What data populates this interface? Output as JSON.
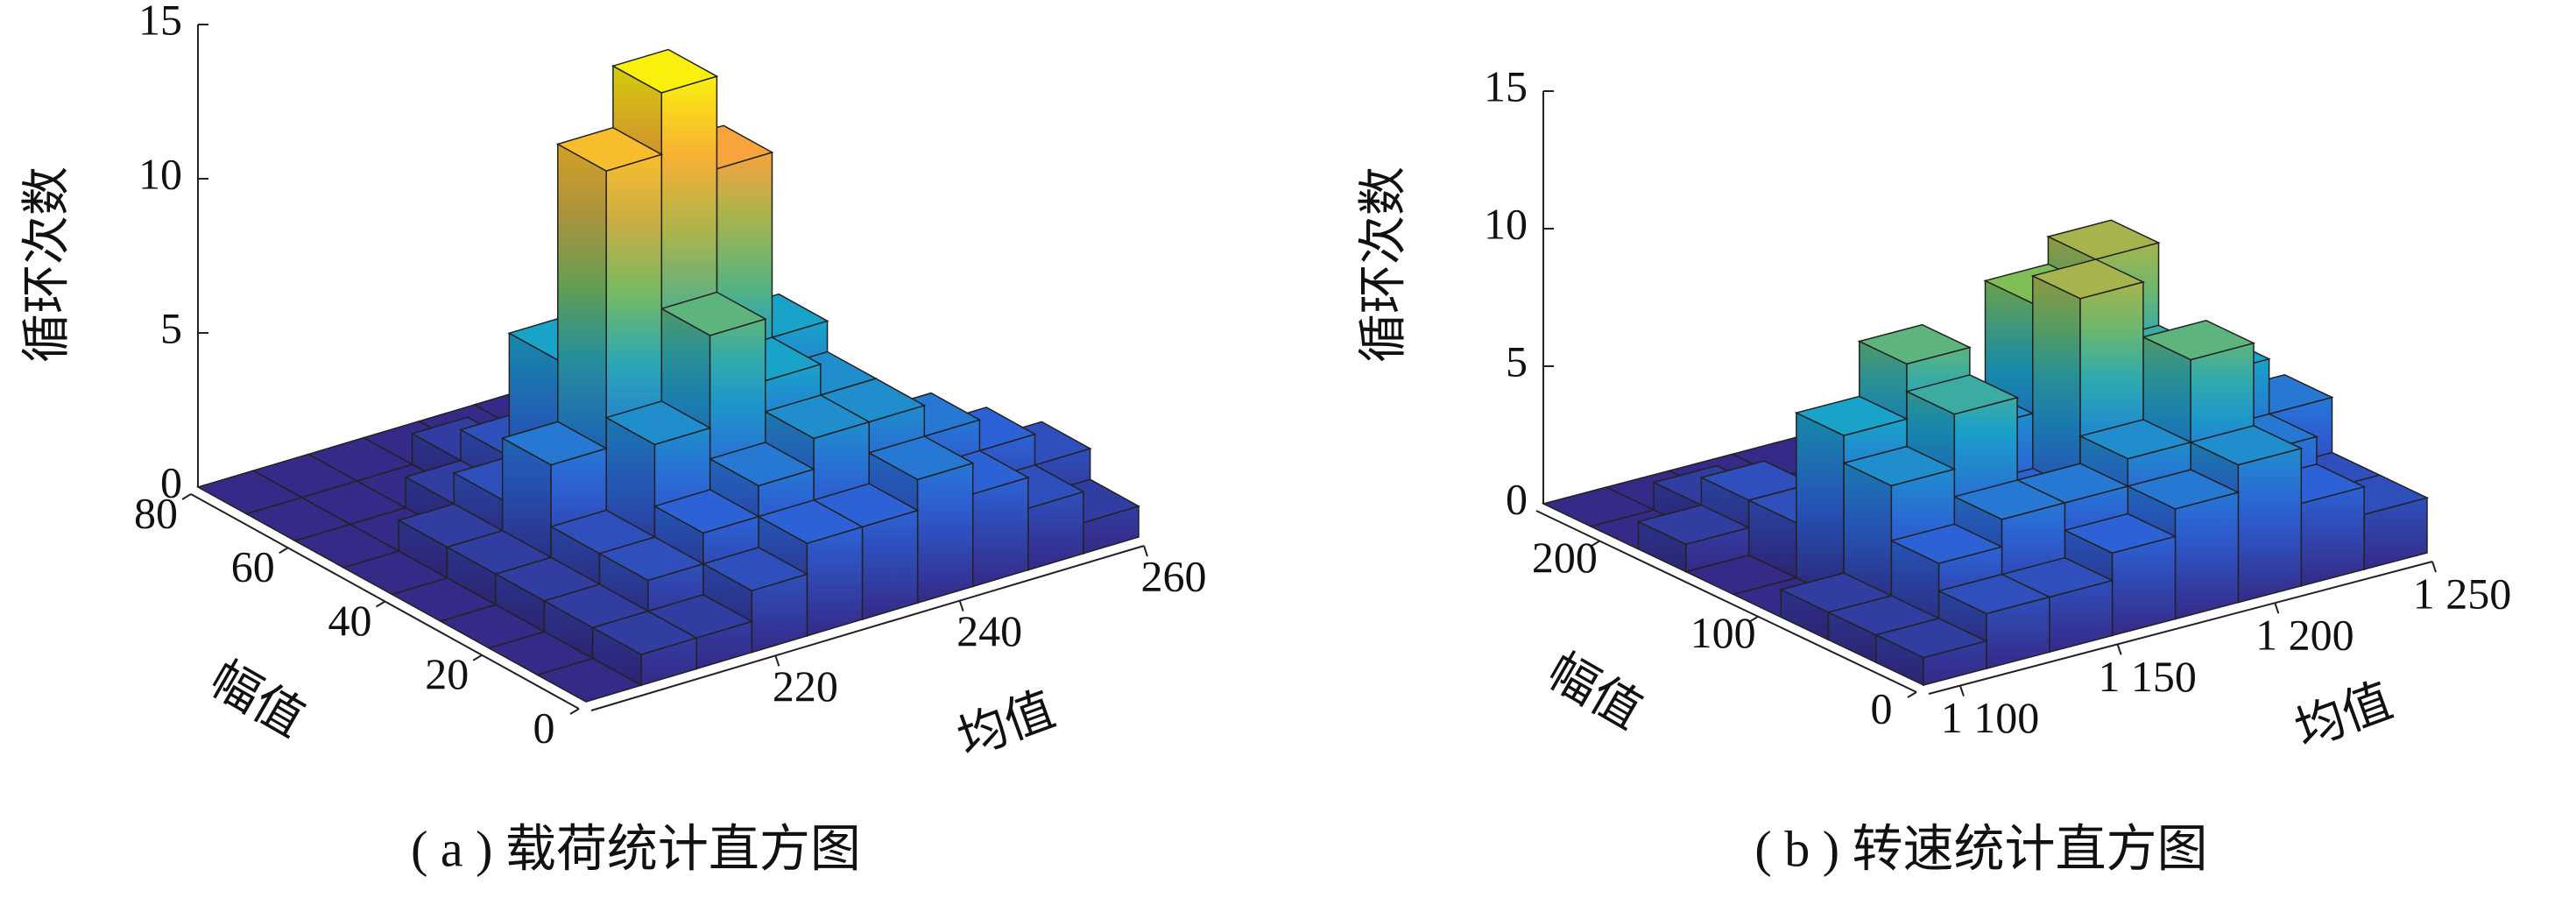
{
  "chart_data": [
    {
      "type": "bar3d",
      "caption": "( a ) 载荷统计直方图",
      "x_label": "均值",
      "y_label": "幅值",
      "z_label": "循环次数",
      "colormap": [
        "#352a87",
        "#2c62d6",
        "#1aa3c9",
        "#7fbd55",
        "#f8a33c",
        "#f9f00e"
      ],
      "x_bins": [
        200,
        206,
        212,
        218,
        224,
        230,
        236,
        242,
        248,
        254,
        260
      ],
      "y_bins": [
        0,
        10,
        20,
        30,
        40,
        50,
        60,
        70,
        80
      ],
      "counts": [
        [
          0,
          1,
          1,
          2,
          3,
          3,
          4,
          3,
          2,
          1
        ],
        [
          0,
          1,
          2,
          3,
          4,
          5,
          5,
          4,
          3,
          2
        ],
        [
          0,
          1,
          2,
          5,
          8,
          6,
          5,
          3,
          2,
          1
        ],
        [
          0,
          1,
          4,
          13,
          15,
          12,
          6,
          2,
          1,
          0
        ],
        [
          0,
          1,
          2,
          6,
          5,
          4,
          2,
          1,
          0,
          0
        ],
        [
          0,
          0,
          1,
          2,
          1,
          1,
          0,
          0,
          0,
          0
        ],
        [
          0,
          0,
          0,
          1,
          0,
          0,
          0,
          0,
          0,
          0
        ],
        [
          0,
          0,
          0,
          0,
          0,
          0,
          0,
          0,
          0,
          0
        ]
      ],
      "xlim": [
        200,
        260
      ],
      "ylim": [
        0,
        80
      ],
      "zlim": [
        0,
        15
      ],
      "xticks": [
        220,
        240,
        260
      ],
      "yticks": [
        0,
        20,
        40,
        60,
        80
      ],
      "zticks": [
        0,
        5,
        10,
        15
      ]
    },
    {
      "type": "bar3d",
      "caption": "( b ) 转速统计直方图",
      "x_label": "均值",
      "y_label": "幅值",
      "z_label": "循环次数",
      "colormap": [
        "#352a87",
        "#2c62d6",
        "#1aa3c9",
        "#7fbd55",
        "#f8a33c",
        "#f9f00e"
      ],
      "x_bins": [
        1090,
        1110,
        1130,
        1150,
        1170,
        1190,
        1210,
        1230,
        1250
      ],
      "y_bins": [
        0,
        30,
        60,
        90,
        120,
        150,
        180,
        210,
        240
      ],
      "counts": [
        [
          1,
          2,
          2,
          3,
          4,
          5,
          3,
          2
        ],
        [
          1,
          3,
          4,
          4,
          5,
          8,
          4,
          2
        ],
        [
          1,
          5,
          7,
          3,
          10,
          7,
          6,
          4
        ],
        [
          0,
          6,
          8,
          5,
          9,
          10,
          5,
          3
        ],
        [
          0,
          2,
          3,
          2,
          2,
          1,
          1,
          0
        ],
        [
          1,
          2,
          1,
          1,
          0,
          0,
          0,
          0
        ],
        [
          0,
          1,
          0,
          0,
          0,
          0,
          0,
          0
        ],
        [
          0,
          0,
          0,
          0,
          0,
          0,
          0,
          0
        ]
      ],
      "xlim": [
        1090,
        1250
      ],
      "ylim": [
        0,
        240
      ],
      "zlim": [
        0,
        15
      ],
      "xticks": [
        {
          "value": 1100,
          "label": "1 100"
        },
        {
          "value": 1150,
          "label": "1 150"
        },
        {
          "value": 1200,
          "label": "1 200"
        },
        {
          "value": 1250,
          "label": "1 250"
        }
      ],
      "yticks": [
        0,
        100,
        200
      ],
      "zticks": [
        0,
        5,
        10,
        15
      ]
    }
  ]
}
